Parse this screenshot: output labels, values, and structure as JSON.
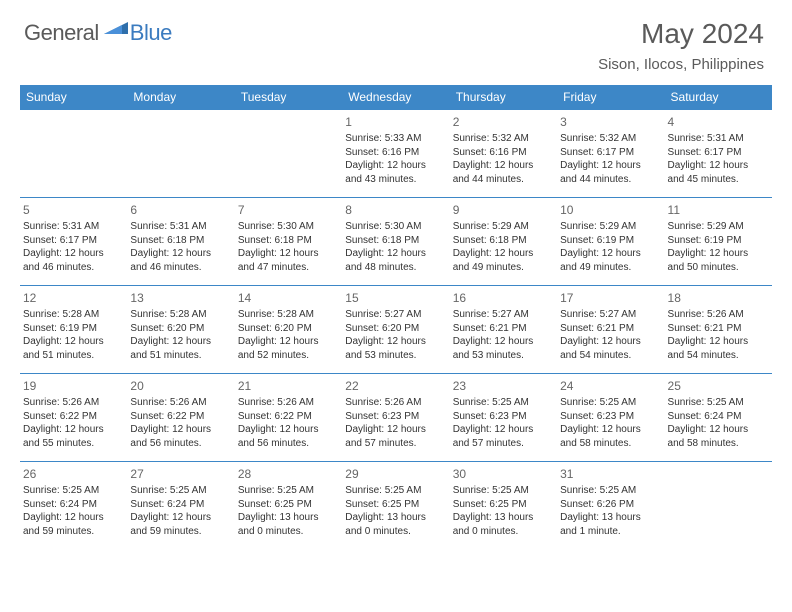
{
  "brand": {
    "part1": "General",
    "part2": "Blue"
  },
  "title": "May 2024",
  "location": "Sison, Ilocos, Philippines",
  "header_color": "#3d87c7",
  "border_color": "#3d87c7",
  "text_color": "#333333",
  "weekdays": [
    "Sunday",
    "Monday",
    "Tuesday",
    "Wednesday",
    "Thursday",
    "Friday",
    "Saturday"
  ],
  "cells": [
    {
      "day": "",
      "lines": []
    },
    {
      "day": "",
      "lines": []
    },
    {
      "day": "",
      "lines": []
    },
    {
      "day": "1",
      "lines": [
        "Sunrise: 5:33 AM",
        "Sunset: 6:16 PM",
        "Daylight: 12 hours",
        "and 43 minutes."
      ]
    },
    {
      "day": "2",
      "lines": [
        "Sunrise: 5:32 AM",
        "Sunset: 6:16 PM",
        "Daylight: 12 hours",
        "and 44 minutes."
      ]
    },
    {
      "day": "3",
      "lines": [
        "Sunrise: 5:32 AM",
        "Sunset: 6:17 PM",
        "Daylight: 12 hours",
        "and 44 minutes."
      ]
    },
    {
      "day": "4",
      "lines": [
        "Sunrise: 5:31 AM",
        "Sunset: 6:17 PM",
        "Daylight: 12 hours",
        "and 45 minutes."
      ]
    },
    {
      "day": "5",
      "lines": [
        "Sunrise: 5:31 AM",
        "Sunset: 6:17 PM",
        "Daylight: 12 hours",
        "and 46 minutes."
      ]
    },
    {
      "day": "6",
      "lines": [
        "Sunrise: 5:31 AM",
        "Sunset: 6:18 PM",
        "Daylight: 12 hours",
        "and 46 minutes."
      ]
    },
    {
      "day": "7",
      "lines": [
        "Sunrise: 5:30 AM",
        "Sunset: 6:18 PM",
        "Daylight: 12 hours",
        "and 47 minutes."
      ]
    },
    {
      "day": "8",
      "lines": [
        "Sunrise: 5:30 AM",
        "Sunset: 6:18 PM",
        "Daylight: 12 hours",
        "and 48 minutes."
      ]
    },
    {
      "day": "9",
      "lines": [
        "Sunrise: 5:29 AM",
        "Sunset: 6:18 PM",
        "Daylight: 12 hours",
        "and 49 minutes."
      ]
    },
    {
      "day": "10",
      "lines": [
        "Sunrise: 5:29 AM",
        "Sunset: 6:19 PM",
        "Daylight: 12 hours",
        "and 49 minutes."
      ]
    },
    {
      "day": "11",
      "lines": [
        "Sunrise: 5:29 AM",
        "Sunset: 6:19 PM",
        "Daylight: 12 hours",
        "and 50 minutes."
      ]
    },
    {
      "day": "12",
      "lines": [
        "Sunrise: 5:28 AM",
        "Sunset: 6:19 PM",
        "Daylight: 12 hours",
        "and 51 minutes."
      ]
    },
    {
      "day": "13",
      "lines": [
        "Sunrise: 5:28 AM",
        "Sunset: 6:20 PM",
        "Daylight: 12 hours",
        "and 51 minutes."
      ]
    },
    {
      "day": "14",
      "lines": [
        "Sunrise: 5:28 AM",
        "Sunset: 6:20 PM",
        "Daylight: 12 hours",
        "and 52 minutes."
      ]
    },
    {
      "day": "15",
      "lines": [
        "Sunrise: 5:27 AM",
        "Sunset: 6:20 PM",
        "Daylight: 12 hours",
        "and 53 minutes."
      ]
    },
    {
      "day": "16",
      "lines": [
        "Sunrise: 5:27 AM",
        "Sunset: 6:21 PM",
        "Daylight: 12 hours",
        "and 53 minutes."
      ]
    },
    {
      "day": "17",
      "lines": [
        "Sunrise: 5:27 AM",
        "Sunset: 6:21 PM",
        "Daylight: 12 hours",
        "and 54 minutes."
      ]
    },
    {
      "day": "18",
      "lines": [
        "Sunrise: 5:26 AM",
        "Sunset: 6:21 PM",
        "Daylight: 12 hours",
        "and 54 minutes."
      ]
    },
    {
      "day": "19",
      "lines": [
        "Sunrise: 5:26 AM",
        "Sunset: 6:22 PM",
        "Daylight: 12 hours",
        "and 55 minutes."
      ]
    },
    {
      "day": "20",
      "lines": [
        "Sunrise: 5:26 AM",
        "Sunset: 6:22 PM",
        "Daylight: 12 hours",
        "and 56 minutes."
      ]
    },
    {
      "day": "21",
      "lines": [
        "Sunrise: 5:26 AM",
        "Sunset: 6:22 PM",
        "Daylight: 12 hours",
        "and 56 minutes."
      ]
    },
    {
      "day": "22",
      "lines": [
        "Sunrise: 5:26 AM",
        "Sunset: 6:23 PM",
        "Daylight: 12 hours",
        "and 57 minutes."
      ]
    },
    {
      "day": "23",
      "lines": [
        "Sunrise: 5:25 AM",
        "Sunset: 6:23 PM",
        "Daylight: 12 hours",
        "and 57 minutes."
      ]
    },
    {
      "day": "24",
      "lines": [
        "Sunrise: 5:25 AM",
        "Sunset: 6:23 PM",
        "Daylight: 12 hours",
        "and 58 minutes."
      ]
    },
    {
      "day": "25",
      "lines": [
        "Sunrise: 5:25 AM",
        "Sunset: 6:24 PM",
        "Daylight: 12 hours",
        "and 58 minutes."
      ]
    },
    {
      "day": "26",
      "lines": [
        "Sunrise: 5:25 AM",
        "Sunset: 6:24 PM",
        "Daylight: 12 hours",
        "and 59 minutes."
      ]
    },
    {
      "day": "27",
      "lines": [
        "Sunrise: 5:25 AM",
        "Sunset: 6:24 PM",
        "Daylight: 12 hours",
        "and 59 minutes."
      ]
    },
    {
      "day": "28",
      "lines": [
        "Sunrise: 5:25 AM",
        "Sunset: 6:25 PM",
        "Daylight: 13 hours",
        "and 0 minutes."
      ]
    },
    {
      "day": "29",
      "lines": [
        "Sunrise: 5:25 AM",
        "Sunset: 6:25 PM",
        "Daylight: 13 hours",
        "and 0 minutes."
      ]
    },
    {
      "day": "30",
      "lines": [
        "Sunrise: 5:25 AM",
        "Sunset: 6:25 PM",
        "Daylight: 13 hours",
        "and 0 minutes."
      ]
    },
    {
      "day": "31",
      "lines": [
        "Sunrise: 5:25 AM",
        "Sunset: 6:26 PM",
        "Daylight: 13 hours",
        "and 1 minute."
      ]
    },
    {
      "day": "",
      "lines": []
    }
  ]
}
